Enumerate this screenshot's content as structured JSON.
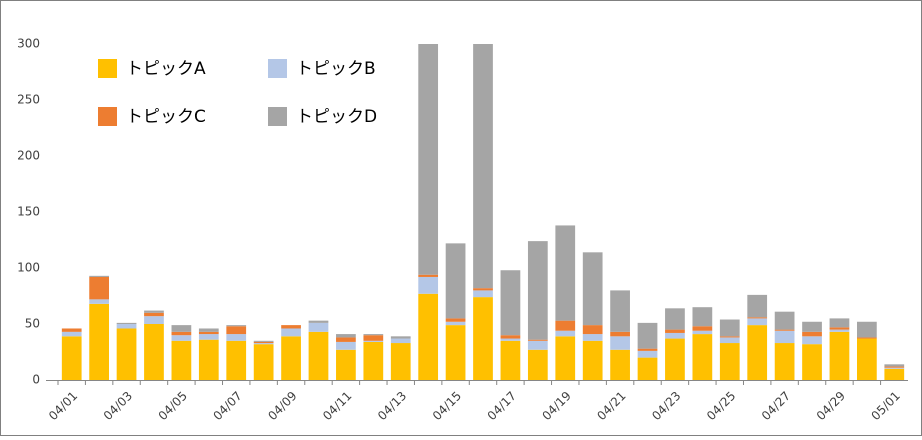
{
  "chart_data": {
    "type": "stacked-bar",
    "categories": [
      "04/01",
      null,
      "04/03",
      null,
      "04/05",
      null,
      "04/07",
      null,
      "04/09",
      null,
      "04/11",
      null,
      "04/13",
      null,
      "04/15",
      null,
      "04/17",
      null,
      "04/19",
      null,
      "04/21",
      null,
      "04/23",
      null,
      "04/25",
      null,
      "04/27",
      null,
      "04/29",
      null,
      "05/01"
    ],
    "series": [
      {
        "name": "トピックA",
        "color": "#ffc000",
        "values": [
          39,
          68,
          46,
          50,
          35,
          36,
          35,
          32,
          39,
          43,
          27,
          34,
          33,
          77,
          49,
          74,
          35,
          27,
          39,
          35,
          27,
          20,
          37,
          41,
          33,
          49,
          33,
          32,
          43,
          37,
          10
        ]
      },
      {
        "name": "トピックB",
        "color": "#b4c7e7",
        "values": [
          4,
          4,
          4,
          7,
          5,
          5,
          6,
          1,
          7,
          8,
          7,
          1,
          4,
          15,
          3,
          6,
          2,
          8,
          5,
          6,
          12,
          6,
          5,
          3,
          5,
          6,
          11,
          7,
          2,
          0,
          1
        ]
      },
      {
        "name": "トピックC",
        "color": "#ed7d31",
        "values": [
          3,
          20,
          0,
          3,
          3,
          2,
          7,
          1,
          3,
          0,
          4,
          5,
          0,
          2,
          3,
          2,
          3,
          1,
          9,
          8,
          4,
          2,
          3,
          4,
          1,
          1,
          1,
          4,
          2,
          1,
          1
        ]
      },
      {
        "name": "トピックD",
        "color": "#a5a5a5",
        "values": [
          0,
          1,
          1,
          2,
          6,
          3,
          1,
          1,
          0,
          2,
          3,
          1,
          2,
          206,
          67,
          218,
          58,
          88,
          85,
          65,
          37,
          23,
          19,
          17,
          15,
          20,
          16,
          9,
          8,
          14,
          2
        ]
      }
    ],
    "ylim": [
      0,
      300
    ],
    "yticks": [
      0,
      50,
      100,
      150,
      200,
      250,
      300
    ]
  }
}
